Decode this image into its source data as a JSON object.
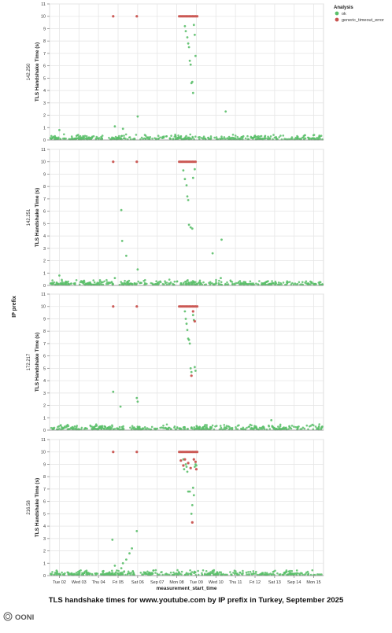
{
  "title": "TLS handshake times for www.youtube.com by IP prefix in Turkey, September 2025",
  "logo_text": "OONI",
  "legend": {
    "title": "Analysis",
    "entries": [
      {
        "label": "ok",
        "color": "#5bbf6a"
      },
      {
        "label": "generic_timeout_error",
        "color": "#c9534f"
      }
    ]
  },
  "y_axis_outer_label": "IP prefix",
  "chart_data": {
    "type": "scatter",
    "xlabel": "measurement_start_time",
    "ylabel": "TLS Handshake Time (s)",
    "ylim": [
      0,
      11
    ],
    "y_ticks": [
      0,
      1,
      2,
      3,
      4,
      5,
      6,
      7,
      8,
      9,
      10,
      11
    ],
    "xlim": [
      "2025-09-01T12:00",
      "2025-09-15T12:00"
    ],
    "x_ticks": [
      {
        "date": "2025-09-02",
        "label": "Tue 02"
      },
      {
        "date": "2025-09-03",
        "label": "Wed 03"
      },
      {
        "date": "2025-09-04",
        "label": "Thu 04"
      },
      {
        "date": "2025-09-05",
        "label": "Fri 05"
      },
      {
        "date": "2025-09-06",
        "label": "Sat 06"
      },
      {
        "date": "2025-09-07",
        "label": "Sep 07"
      },
      {
        "date": "2025-09-08",
        "label": "Mon 08"
      },
      {
        "date": "2025-09-09",
        "label": "Tue 09"
      },
      {
        "date": "2025-09-10",
        "label": "Wed 10"
      },
      {
        "date": "2025-09-11",
        "label": "Thu 11"
      },
      {
        "date": "2025-09-12",
        "label": "Fri 12"
      },
      {
        "date": "2025-09-13",
        "label": "Sat 13"
      },
      {
        "date": "2025-09-14",
        "label": "Sep 14"
      },
      {
        "date": "2025-09-15",
        "label": "Mon 15"
      }
    ],
    "grid": true,
    "legend_position": "top-right",
    "series_colors": {
      "ok": "#5bbf6a",
      "generic_timeout_error": "#c9534f"
    },
    "panels": [
      {
        "name": "142.250",
        "ok": [
          [
            "2025-09-02T00:00",
            0.8
          ],
          [
            "2025-09-04T20:00",
            1.1
          ],
          [
            "2025-09-05T06:00",
            0.9
          ],
          [
            "2025-09-06T00:00",
            1.9
          ],
          [
            "2025-09-08T10:00",
            9.2
          ],
          [
            "2025-09-08T11:00",
            8.8
          ],
          [
            "2025-09-08T13:00",
            8.3
          ],
          [
            "2025-09-08T14:00",
            7.8
          ],
          [
            "2025-09-08T15:00",
            7.5
          ],
          [
            "2025-09-08T16:00",
            6.4
          ],
          [
            "2025-09-08T17:00",
            6.1
          ],
          [
            "2025-09-08T18:00",
            4.6
          ],
          [
            "2025-09-08T19:00",
            4.7
          ],
          [
            "2025-09-08T20:00",
            3.8
          ],
          [
            "2025-09-08T21:00",
            9.3
          ],
          [
            "2025-09-08T22:00",
            8.5
          ],
          [
            "2025-09-08T23:00",
            6.8
          ],
          [
            "2025-09-10T12:00",
            2.3
          ]
        ],
        "timeouts": [
          [
            "2025-09-04T18:00",
            10
          ],
          [
            "2025-09-05T23:00",
            10
          ],
          [
            "2025-09-08T03:00",
            10
          ],
          [
            "2025-09-08T05:00",
            10
          ],
          [
            "2025-09-08T07:00",
            10
          ],
          [
            "2025-09-08T09:00",
            10
          ],
          [
            "2025-09-08T11:00",
            10
          ],
          [
            "2025-09-08T13:00",
            10
          ],
          [
            "2025-09-08T15:00",
            10
          ],
          [
            "2025-09-08T17:00",
            10
          ],
          [
            "2025-09-08T19:00",
            10
          ],
          [
            "2025-09-08T21:00",
            10
          ],
          [
            "2025-09-08T23:00",
            10
          ],
          [
            "2025-09-09T01:00",
            10
          ]
        ]
      },
      {
        "name": "142.251",
        "ok": [
          [
            "2025-09-02T00:00",
            0.8
          ],
          [
            "2025-09-04T20:00",
            0.6
          ],
          [
            "2025-09-05T04:00",
            6.1
          ],
          [
            "2025-09-05T05:00",
            3.6
          ],
          [
            "2025-09-05T10:00",
            2.4
          ],
          [
            "2025-09-06T00:00",
            1.3
          ],
          [
            "2025-09-08T08:00",
            9.3
          ],
          [
            "2025-09-08T10:00",
            8.6
          ],
          [
            "2025-09-08T12:00",
            8.1
          ],
          [
            "2025-09-08T13:00",
            7.2
          ],
          [
            "2025-09-08T14:00",
            6.9
          ],
          [
            "2025-09-08T15:00",
            4.9
          ],
          [
            "2025-09-08T17:00",
            4.7
          ],
          [
            "2025-09-08T19:00",
            4.6
          ],
          [
            "2025-09-08T20:00",
            8.7
          ],
          [
            "2025-09-08T22:00",
            9.4
          ],
          [
            "2025-09-09T20:00",
            2.6
          ],
          [
            "2025-09-10T07:00",
            3.7
          ],
          [
            "2025-09-10T06:00",
            0.6
          ]
        ],
        "timeouts": [
          [
            "2025-09-04T18:00",
            10
          ],
          [
            "2025-09-05T23:00",
            10
          ],
          [
            "2025-09-08T03:00",
            10
          ],
          [
            "2025-09-08T05:00",
            10
          ],
          [
            "2025-09-08T07:00",
            10
          ],
          [
            "2025-09-08T09:00",
            10
          ],
          [
            "2025-09-08T11:00",
            10
          ],
          [
            "2025-09-08T13:00",
            10
          ],
          [
            "2025-09-08T15:00",
            10
          ],
          [
            "2025-09-08T17:00",
            10
          ],
          [
            "2025-09-08T19:00",
            10
          ],
          [
            "2025-09-08T21:00",
            10
          ],
          [
            "2025-09-08T23:00",
            10
          ]
        ]
      },
      {
        "name": "172.217",
        "ok": [
          [
            "2025-09-04T18:00",
            3.1
          ],
          [
            "2025-09-05T03:00",
            1.9
          ],
          [
            "2025-09-05T23:00",
            2.6
          ],
          [
            "2025-09-06T00:00",
            2.3
          ],
          [
            "2025-09-08T10:00",
            9.6
          ],
          [
            "2025-09-08T11:00",
            9.0
          ],
          [
            "2025-09-08T12:00",
            8.6
          ],
          [
            "2025-09-08T13:00",
            8.1
          ],
          [
            "2025-09-08T14:00",
            7.4
          ],
          [
            "2025-09-08T15:00",
            7.3
          ],
          [
            "2025-09-08T16:00",
            7.0
          ],
          [
            "2025-09-08T17:00",
            5.0
          ],
          [
            "2025-09-08T18:00",
            4.7
          ],
          [
            "2025-09-08T20:00",
            9.3
          ],
          [
            "2025-09-08T21:00",
            8.9
          ],
          [
            "2025-09-08T22:00",
            5.1
          ],
          [
            "2025-09-08T23:00",
            4.8
          ],
          [
            "2025-09-12T20:00",
            0.8
          ]
        ],
        "timeouts": [
          [
            "2025-09-04T18:00",
            10
          ],
          [
            "2025-09-05T23:00",
            10
          ],
          [
            "2025-09-08T03:00",
            10
          ],
          [
            "2025-09-08T05:00",
            10
          ],
          [
            "2025-09-08T07:00",
            10
          ],
          [
            "2025-09-08T09:00",
            10
          ],
          [
            "2025-09-08T11:00",
            10
          ],
          [
            "2025-09-08T13:00",
            10
          ],
          [
            "2025-09-08T15:00",
            10
          ],
          [
            "2025-09-08T17:00",
            10
          ],
          [
            "2025-09-08T19:00",
            10
          ],
          [
            "2025-09-08T21:00",
            10
          ],
          [
            "2025-09-08T23:00",
            10
          ],
          [
            "2025-09-09T01:00",
            10
          ],
          [
            "2025-09-08T18:00",
            4.4
          ],
          [
            "2025-09-08T20:00",
            9.6
          ],
          [
            "2025-09-08T22:00",
            8.8
          ]
        ]
      },
      {
        "name": "216.58",
        "ok": [
          [
            "2025-09-04T17:00",
            2.9
          ],
          [
            "2025-09-04T20:00",
            0.8
          ],
          [
            "2025-09-05T04:00",
            0.6
          ],
          [
            "2025-09-05T06:00",
            1.0
          ],
          [
            "2025-09-05T10:00",
            1.3
          ],
          [
            "2025-09-05T14:00",
            1.8
          ],
          [
            "2025-09-05T17:00",
            2.2
          ],
          [
            "2025-09-05T23:00",
            3.6
          ],
          [
            "2025-09-08T08:00",
            9.4
          ],
          [
            "2025-09-08T09:00",
            8.6
          ],
          [
            "2025-09-08T11:00",
            9.0
          ],
          [
            "2025-09-08T12:00",
            8.8
          ],
          [
            "2025-09-08T13:00",
            8.4
          ],
          [
            "2025-09-08T14:00",
            6.8
          ],
          [
            "2025-09-08T16:00",
            6.8
          ],
          [
            "2025-09-08T18:00",
            5.0
          ],
          [
            "2025-09-08T19:00",
            5.7
          ],
          [
            "2025-09-08T20:00",
            7.1
          ],
          [
            "2025-09-08T21:00",
            6.5
          ],
          [
            "2025-09-08T22:00",
            8.8
          ],
          [
            "2025-09-08T23:00",
            9.0
          ],
          [
            "2025-09-09T00:00",
            8.9
          ]
        ],
        "timeouts": [
          [
            "2025-09-04T18:00",
            10
          ],
          [
            "2025-09-05T23:00",
            10
          ],
          [
            "2025-09-08T03:00",
            10
          ],
          [
            "2025-09-08T05:00",
            10
          ],
          [
            "2025-09-08T07:00",
            10
          ],
          [
            "2025-09-08T09:00",
            10
          ],
          [
            "2025-09-08T11:00",
            10
          ],
          [
            "2025-09-08T13:00",
            10
          ],
          [
            "2025-09-08T15:00",
            10
          ],
          [
            "2025-09-08T17:00",
            10
          ],
          [
            "2025-09-08T19:00",
            10
          ],
          [
            "2025-09-08T21:00",
            10
          ],
          [
            "2025-09-08T23:00",
            10
          ],
          [
            "2025-09-09T01:00",
            10
          ],
          [
            "2025-09-08T05:00",
            9.3
          ],
          [
            "2025-09-08T08:00",
            8.9
          ],
          [
            "2025-09-08T10:00",
            9.4
          ],
          [
            "2025-09-08T14:00",
            9.1
          ],
          [
            "2025-09-08T17:00",
            8.7
          ],
          [
            "2025-09-08T19:00",
            4.3
          ],
          [
            "2025-09-08T21:00",
            9.4
          ],
          [
            "2025-09-08T23:00",
            9.2
          ],
          [
            "2025-09-09T00:00",
            8.6
          ]
        ]
      }
    ]
  }
}
